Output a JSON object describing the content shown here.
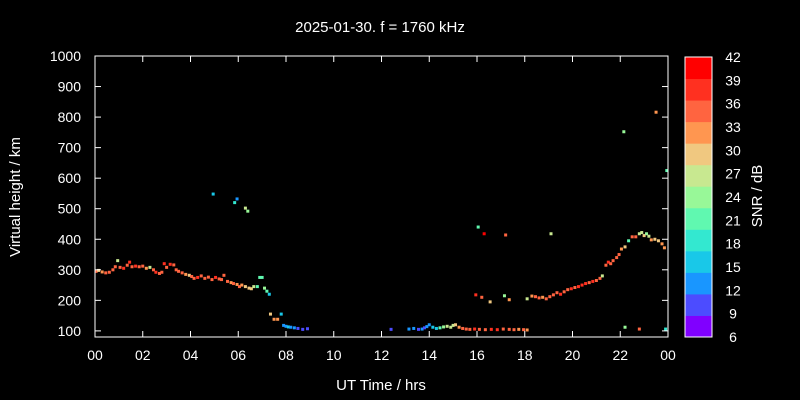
{
  "chart_data": {
    "type": "scatter",
    "title": "2025-01-30. f = 1760 kHz",
    "xlabel": "UT Time / hrs",
    "ylabel": "Virtual height / km",
    "xlim": [
      0,
      24
    ],
    "ylim": [
      80,
      1000
    ],
    "x_ticks": [
      "00",
      "02",
      "04",
      "06",
      "08",
      "10",
      "12",
      "14",
      "16",
      "18",
      "20",
      "22",
      "00"
    ],
    "y_ticks": [
      100,
      200,
      300,
      400,
      500,
      600,
      700,
      800,
      900,
      1000
    ],
    "grid": false,
    "colorbar": {
      "label": "SNR / dB",
      "range": [
        6,
        42
      ],
      "ticks": [
        6,
        9,
        12,
        15,
        18,
        21,
        24,
        27,
        30,
        33,
        36,
        39,
        42
      ],
      "colors": [
        "#8000ff",
        "#4c4cff",
        "#1996ff",
        "#19c8e8",
        "#33e8d0",
        "#60f8b0",
        "#98f898",
        "#c8e890",
        "#f0c880",
        "#ff9650",
        "#ff6440",
        "#ff3020",
        "#ff0000"
      ]
    },
    "points": [
      {
        "t": 0.05,
        "h": 295,
        "snr": 36
      },
      {
        "t": 0.15,
        "h": 298,
        "snr": 30
      },
      {
        "t": 0.3,
        "h": 293,
        "snr": 34
      },
      {
        "t": 0.45,
        "h": 290,
        "snr": 36
      },
      {
        "t": 0.6,
        "h": 292,
        "snr": 35
      },
      {
        "t": 0.75,
        "h": 300,
        "snr": 37
      },
      {
        "t": 0.85,
        "h": 310,
        "snr": 36
      },
      {
        "t": 0.95,
        "h": 330,
        "snr": 27
      },
      {
        "t": 1.05,
        "h": 308,
        "snr": 36
      },
      {
        "t": 1.2,
        "h": 305,
        "snr": 38
      },
      {
        "t": 1.35,
        "h": 315,
        "snr": 36
      },
      {
        "t": 1.45,
        "h": 325,
        "snr": 38
      },
      {
        "t": 1.55,
        "h": 310,
        "snr": 37
      },
      {
        "t": 1.7,
        "h": 312,
        "snr": 38
      },
      {
        "t": 1.85,
        "h": 310,
        "snr": 36
      },
      {
        "t": 2.0,
        "h": 312,
        "snr": 37
      },
      {
        "t": 2.15,
        "h": 305,
        "snr": 33
      },
      {
        "t": 2.3,
        "h": 308,
        "snr": 28
      },
      {
        "t": 2.45,
        "h": 300,
        "snr": 36
      },
      {
        "t": 2.55,
        "h": 292,
        "snr": 38
      },
      {
        "t": 2.7,
        "h": 288,
        "snr": 37
      },
      {
        "t": 2.8,
        "h": 292,
        "snr": 36
      },
      {
        "t": 2.9,
        "h": 320,
        "snr": 38
      },
      {
        "t": 3.0,
        "h": 308,
        "snr": 37
      },
      {
        "t": 3.15,
        "h": 318,
        "snr": 38
      },
      {
        "t": 3.3,
        "h": 316,
        "snr": 37
      },
      {
        "t": 3.4,
        "h": 300,
        "snr": 36
      },
      {
        "t": 3.5,
        "h": 295,
        "snr": 35
      },
      {
        "t": 3.65,
        "h": 290,
        "snr": 36
      },
      {
        "t": 3.8,
        "h": 285,
        "snr": 33
      },
      {
        "t": 3.95,
        "h": 282,
        "snr": 30
      },
      {
        "t": 4.05,
        "h": 278,
        "snr": 36
      },
      {
        "t": 4.15,
        "h": 272,
        "snr": 37
      },
      {
        "t": 4.3,
        "h": 275,
        "snr": 38
      },
      {
        "t": 4.45,
        "h": 280,
        "snr": 36
      },
      {
        "t": 4.6,
        "h": 272,
        "snr": 37
      },
      {
        "t": 4.75,
        "h": 276,
        "snr": 36
      },
      {
        "t": 4.9,
        "h": 268,
        "snr": 37
      },
      {
        "t": 5.05,
        "h": 275,
        "snr": 38
      },
      {
        "t": 5.2,
        "h": 270,
        "snr": 37
      },
      {
        "t": 5.3,
        "h": 268,
        "snr": 36
      },
      {
        "t": 5.4,
        "h": 282,
        "snr": 35
      },
      {
        "t": 5.55,
        "h": 262,
        "snr": 35
      },
      {
        "t": 5.7,
        "h": 258,
        "snr": 34
      },
      {
        "t": 5.8,
        "h": 255,
        "snr": 36
      },
      {
        "t": 5.95,
        "h": 252,
        "snr": 33
      },
      {
        "t": 6.05,
        "h": 245,
        "snr": 35
      },
      {
        "t": 6.15,
        "h": 250,
        "snr": 34
      },
      {
        "t": 6.3,
        "h": 245,
        "snr": 31
      },
      {
        "t": 6.45,
        "h": 240,
        "snr": 30
      },
      {
        "t": 6.55,
        "h": 238,
        "snr": 29
      },
      {
        "t": 6.65,
        "h": 245,
        "snr": 27
      },
      {
        "t": 6.8,
        "h": 245,
        "snr": 22
      },
      {
        "t": 6.9,
        "h": 275,
        "snr": 21
      },
      {
        "t": 7.0,
        "h": 275,
        "snr": 20
      },
      {
        "t": 7.1,
        "h": 240,
        "snr": 23
      },
      {
        "t": 7.2,
        "h": 230,
        "snr": 21
      },
      {
        "t": 7.3,
        "h": 220,
        "snr": 15
      },
      {
        "t": 7.35,
        "h": 155,
        "snr": 30
      },
      {
        "t": 7.5,
        "h": 138,
        "snr": 33
      },
      {
        "t": 7.65,
        "h": 138,
        "snr": 33
      },
      {
        "t": 7.8,
        "h": 155,
        "snr": 14
      },
      {
        "t": 7.9,
        "h": 118,
        "snr": 13
      },
      {
        "t": 8.0,
        "h": 115,
        "snr": 12
      },
      {
        "t": 8.1,
        "h": 113,
        "snr": 14
      },
      {
        "t": 8.2,
        "h": 112,
        "snr": 12
      },
      {
        "t": 8.35,
        "h": 110,
        "snr": 11
      },
      {
        "t": 8.5,
        "h": 108,
        "snr": 10
      },
      {
        "t": 8.7,
        "h": 105,
        "snr": 9
      },
      {
        "t": 8.9,
        "h": 107,
        "snr": 9
      },
      {
        "t": 4.95,
        "h": 548,
        "snr": 16
      },
      {
        "t": 5.85,
        "h": 520,
        "snr": 19
      },
      {
        "t": 5.95,
        "h": 532,
        "snr": 12
      },
      {
        "t": 6.3,
        "h": 502,
        "snr": 26
      },
      {
        "t": 6.4,
        "h": 492,
        "snr": 25
      },
      {
        "t": 12.4,
        "h": 105,
        "snr": 9
      },
      {
        "t": 13.15,
        "h": 106,
        "snr": 11
      },
      {
        "t": 13.35,
        "h": 108,
        "snr": 12
      },
      {
        "t": 13.55,
        "h": 105,
        "snr": 10
      },
      {
        "t": 13.7,
        "h": 106,
        "snr": 12
      },
      {
        "t": 13.8,
        "h": 110,
        "snr": 9
      },
      {
        "t": 13.9,
        "h": 114,
        "snr": 13
      },
      {
        "t": 14.0,
        "h": 120,
        "snr": 12
      },
      {
        "t": 14.15,
        "h": 112,
        "snr": 15
      },
      {
        "t": 14.3,
        "h": 108,
        "snr": 16
      },
      {
        "t": 14.45,
        "h": 110,
        "snr": 21
      },
      {
        "t": 14.6,
        "h": 113,
        "snr": 24
      },
      {
        "t": 14.75,
        "h": 115,
        "snr": 26
      },
      {
        "t": 14.9,
        "h": 112,
        "snr": 28
      },
      {
        "t": 15.0,
        "h": 118,
        "snr": 27
      },
      {
        "t": 15.1,
        "h": 120,
        "snr": 29
      },
      {
        "t": 15.25,
        "h": 112,
        "snr": 33
      },
      {
        "t": 15.4,
        "h": 108,
        "snr": 35
      },
      {
        "t": 15.55,
        "h": 106,
        "snr": 36
      },
      {
        "t": 15.7,
        "h": 105,
        "snr": 37
      },
      {
        "t": 15.9,
        "h": 106,
        "snr": 38
      },
      {
        "t": 16.1,
        "h": 105,
        "snr": 36
      },
      {
        "t": 16.35,
        "h": 104,
        "snr": 37
      },
      {
        "t": 16.6,
        "h": 105,
        "snr": 38
      },
      {
        "t": 16.85,
        "h": 104,
        "snr": 40
      },
      {
        "t": 17.1,
        "h": 106,
        "snr": 37
      },
      {
        "t": 17.35,
        "h": 105,
        "snr": 36
      },
      {
        "t": 17.55,
        "h": 104,
        "snr": 35
      },
      {
        "t": 17.75,
        "h": 105,
        "snr": 33
      },
      {
        "t": 17.95,
        "h": 104,
        "snr": 36
      },
      {
        "t": 18.1,
        "h": 103,
        "snr": 32
      },
      {
        "t": 16.05,
        "h": 440,
        "snr": 21
      },
      {
        "t": 16.3,
        "h": 418,
        "snr": 42
      },
      {
        "t": 17.2,
        "h": 414,
        "snr": 36
      },
      {
        "t": 19.1,
        "h": 418,
        "snr": 27
      },
      {
        "t": 15.95,
        "h": 218,
        "snr": 39
      },
      {
        "t": 16.2,
        "h": 210,
        "snr": 36
      },
      {
        "t": 16.55,
        "h": 195,
        "snr": 31
      },
      {
        "t": 17.15,
        "h": 215,
        "snr": 24
      },
      {
        "t": 17.35,
        "h": 202,
        "snr": 34
      },
      {
        "t": 18.1,
        "h": 205,
        "snr": 28
      },
      {
        "t": 18.3,
        "h": 214,
        "snr": 33
      },
      {
        "t": 18.45,
        "h": 212,
        "snr": 36
      },
      {
        "t": 18.6,
        "h": 208,
        "snr": 35
      },
      {
        "t": 18.75,
        "h": 210,
        "snr": 34
      },
      {
        "t": 18.9,
        "h": 205,
        "snr": 37
      },
      {
        "t": 19.05,
        "h": 212,
        "snr": 36
      },
      {
        "t": 19.2,
        "h": 218,
        "snr": 37
      },
      {
        "t": 19.35,
        "h": 225,
        "snr": 36
      },
      {
        "t": 19.5,
        "h": 220,
        "snr": 38
      },
      {
        "t": 19.65,
        "h": 228,
        "snr": 36
      },
      {
        "t": 19.8,
        "h": 235,
        "snr": 37
      },
      {
        "t": 19.95,
        "h": 238,
        "snr": 39
      },
      {
        "t": 20.1,
        "h": 242,
        "snr": 37
      },
      {
        "t": 20.25,
        "h": 245,
        "snr": 38
      },
      {
        "t": 20.4,
        "h": 250,
        "snr": 39
      },
      {
        "t": 20.55,
        "h": 255,
        "snr": 38
      },
      {
        "t": 20.7,
        "h": 258,
        "snr": 37
      },
      {
        "t": 20.85,
        "h": 262,
        "snr": 38
      },
      {
        "t": 21.0,
        "h": 265,
        "snr": 37
      },
      {
        "t": 21.15,
        "h": 272,
        "snr": 36
      },
      {
        "t": 21.25,
        "h": 280,
        "snr": 28
      },
      {
        "t": 21.4,
        "h": 315,
        "snr": 37
      },
      {
        "t": 21.5,
        "h": 325,
        "snr": 39
      },
      {
        "t": 21.6,
        "h": 320,
        "snr": 36
      },
      {
        "t": 21.7,
        "h": 330,
        "snr": 37
      },
      {
        "t": 21.85,
        "h": 340,
        "snr": 36
      },
      {
        "t": 21.95,
        "h": 350,
        "snr": 35
      },
      {
        "t": 22.05,
        "h": 368,
        "snr": 33
      },
      {
        "t": 22.2,
        "h": 375,
        "snr": 30
      },
      {
        "t": 22.35,
        "h": 395,
        "snr": 22
      },
      {
        "t": 22.5,
        "h": 408,
        "snr": 36
      },
      {
        "t": 22.65,
        "h": 408,
        "snr": 35
      },
      {
        "t": 22.8,
        "h": 418,
        "snr": 28
      },
      {
        "t": 22.9,
        "h": 422,
        "snr": 26
      },
      {
        "t": 23.0,
        "h": 412,
        "snr": 31
      },
      {
        "t": 23.1,
        "h": 418,
        "snr": 25
      },
      {
        "t": 23.2,
        "h": 410,
        "snr": 28
      },
      {
        "t": 23.3,
        "h": 398,
        "snr": 34
      },
      {
        "t": 23.45,
        "h": 400,
        "snr": 30
      },
      {
        "t": 23.6,
        "h": 395,
        "snr": 29
      },
      {
        "t": 23.75,
        "h": 385,
        "snr": 34
      },
      {
        "t": 23.85,
        "h": 372,
        "snr": 33
      },
      {
        "t": 22.15,
        "h": 752,
        "snr": 24
      },
      {
        "t": 23.5,
        "h": 816,
        "snr": 34
      },
      {
        "t": 23.95,
        "h": 625,
        "snr": 20
      },
      {
        "t": 22.2,
        "h": 112,
        "snr": 24
      },
      {
        "t": 22.8,
        "h": 106,
        "snr": 35
      },
      {
        "t": 23.9,
        "h": 106,
        "snr": 19
      }
    ]
  }
}
